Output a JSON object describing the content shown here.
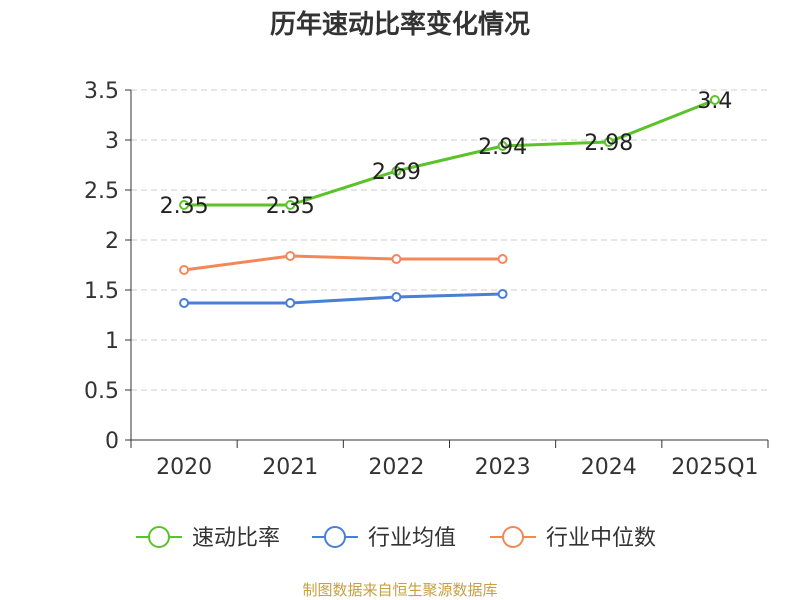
{
  "chart_data": {
    "type": "line",
    "title": "历年速动比率变化情况",
    "categories": [
      "2020",
      "2021",
      "2022",
      "2023",
      "2024",
      "2025Q1"
    ],
    "ylim": [
      0,
      3.5
    ],
    "yticks": [
      "0",
      "0.5",
      "1",
      "1.5",
      "2",
      "2.5",
      "3",
      "3.5"
    ],
    "grid": true,
    "legend_position": "bottom",
    "series": [
      {
        "name": "速动比率",
        "color": "#5cc22b",
        "values": [
          2.35,
          2.35,
          2.69,
          2.94,
          2.98,
          3.4
        ],
        "labels": [
          "2.35",
          "2.35",
          "2.69",
          "2.94",
          "2.98",
          "3.4"
        ]
      },
      {
        "name": "行业均值",
        "color": "#4a7fd6",
        "values": [
          1.37,
          1.37,
          1.43,
          1.46,
          null,
          null
        ]
      },
      {
        "name": "行业中位数",
        "color": "#f4875a",
        "values": [
          1.7,
          1.84,
          1.81,
          1.81,
          null,
          null
        ]
      }
    ]
  },
  "source": "制图数据来自恒生聚源数据库"
}
